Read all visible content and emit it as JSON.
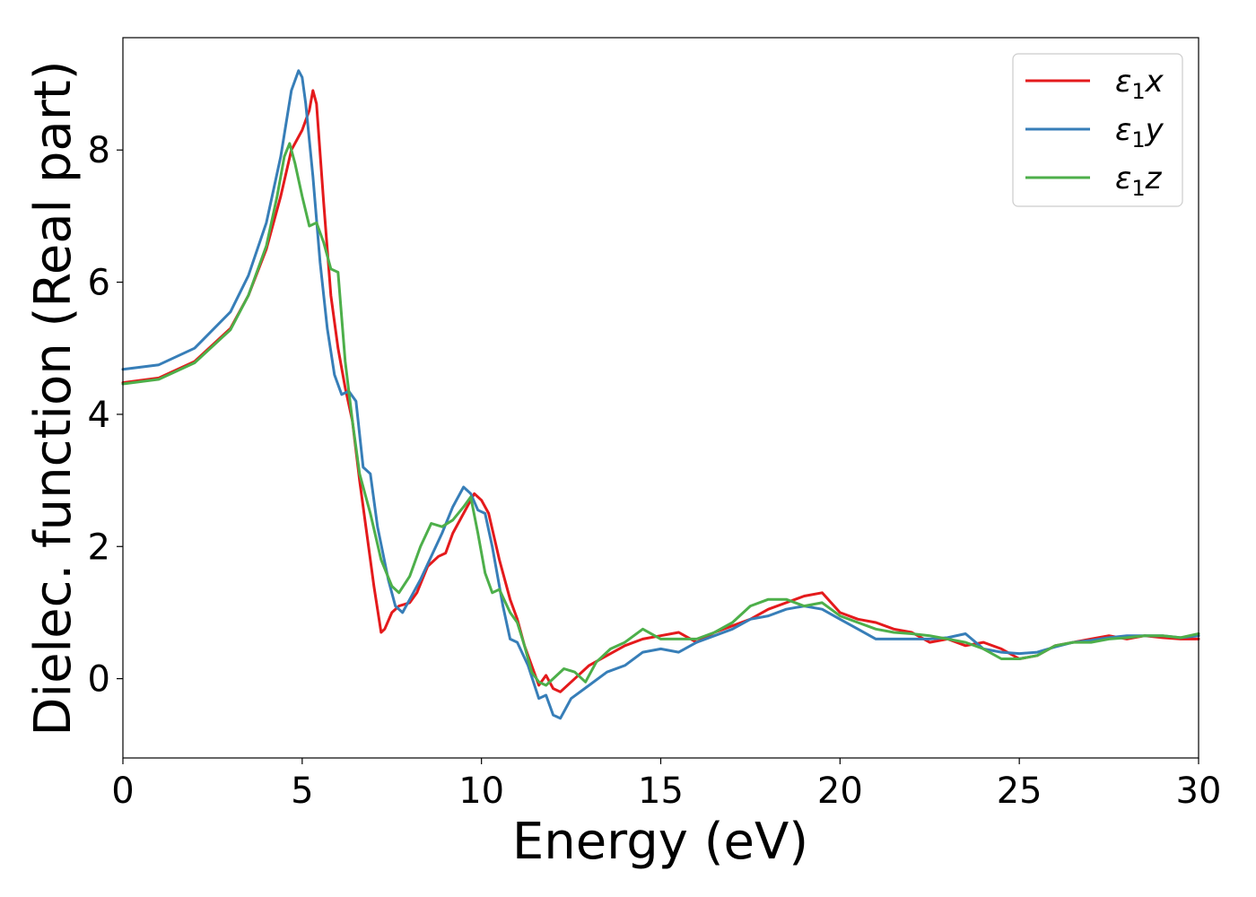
{
  "chart_data": {
    "type": "line",
    "title": "",
    "xlabel": "Energy (eV)",
    "ylabel": "Dielec. function (Real part)",
    "xlim": [
      0,
      30
    ],
    "ylim": [
      -1.2,
      9.7
    ],
    "xticks": [
      0,
      5,
      10,
      15,
      20,
      25,
      30
    ],
    "yticks": [
      0,
      2,
      4,
      6,
      8
    ],
    "grid": false,
    "legend_position": "top-right",
    "series": [
      {
        "name": "ε1x",
        "legend_main": "ε",
        "legend_sub": "1",
        "legend_tail": "x",
        "color": "#e41a1c",
        "points": [
          [
            0,
            4.48
          ],
          [
            1,
            4.55
          ],
          [
            2,
            4.8
          ],
          [
            3,
            5.3
          ],
          [
            3.5,
            5.8
          ],
          [
            4,
            6.5
          ],
          [
            4.4,
            7.3
          ],
          [
            4.7,
            8.0
          ],
          [
            5.0,
            8.3
          ],
          [
            5.2,
            8.6
          ],
          [
            5.3,
            8.9
          ],
          [
            5.4,
            8.7
          ],
          [
            5.6,
            7.2
          ],
          [
            5.8,
            5.8
          ],
          [
            6.0,
            5.0
          ],
          [
            6.2,
            4.4
          ],
          [
            6.4,
            3.9
          ],
          [
            6.6,
            3.0
          ],
          [
            6.8,
            2.2
          ],
          [
            7.0,
            1.4
          ],
          [
            7.2,
            0.7
          ],
          [
            7.3,
            0.75
          ],
          [
            7.5,
            1.0
          ],
          [
            7.7,
            1.1
          ],
          [
            8.0,
            1.15
          ],
          [
            8.2,
            1.3
          ],
          [
            8.5,
            1.7
          ],
          [
            8.8,
            1.85
          ],
          [
            9.0,
            1.9
          ],
          [
            9.2,
            2.2
          ],
          [
            9.5,
            2.5
          ],
          [
            9.8,
            2.8
          ],
          [
            10.0,
            2.7
          ],
          [
            10.2,
            2.5
          ],
          [
            10.5,
            1.8
          ],
          [
            10.8,
            1.2
          ],
          [
            11.0,
            0.9
          ],
          [
            11.2,
            0.5
          ],
          [
            11.5,
            0.05
          ],
          [
            11.6,
            -0.1
          ],
          [
            11.8,
            0.05
          ],
          [
            12.0,
            -0.15
          ],
          [
            12.2,
            -0.2
          ],
          [
            12.5,
            -0.05
          ],
          [
            13.0,
            0.2
          ],
          [
            13.5,
            0.35
          ],
          [
            14.0,
            0.5
          ],
          [
            14.5,
            0.6
          ],
          [
            15.0,
            0.65
          ],
          [
            15.5,
            0.7
          ],
          [
            16.0,
            0.55
          ],
          [
            16.5,
            0.7
          ],
          [
            17.0,
            0.8
          ],
          [
            17.5,
            0.9
          ],
          [
            18.0,
            1.05
          ],
          [
            18.5,
            1.15
          ],
          [
            19.0,
            1.25
          ],
          [
            19.5,
            1.3
          ],
          [
            20.0,
            1.0
          ],
          [
            20.5,
            0.9
          ],
          [
            21.0,
            0.85
          ],
          [
            21.5,
            0.75
          ],
          [
            22.0,
            0.7
          ],
          [
            22.5,
            0.55
          ],
          [
            23.0,
            0.6
          ],
          [
            23.5,
            0.5
          ],
          [
            24.0,
            0.55
          ],
          [
            24.5,
            0.45
          ],
          [
            25.0,
            0.3
          ],
          [
            25.5,
            0.35
          ],
          [
            26.0,
            0.5
          ],
          [
            26.5,
            0.55
          ],
          [
            27.0,
            0.6
          ],
          [
            27.5,
            0.65
          ],
          [
            28.0,
            0.6
          ],
          [
            28.5,
            0.65
          ],
          [
            29.0,
            0.62
          ],
          [
            29.5,
            0.6
          ],
          [
            30.0,
            0.6
          ]
        ]
      },
      {
        "name": "ε1y",
        "legend_main": "ε",
        "legend_sub": "1",
        "legend_tail": "y",
        "color": "#377eb8",
        "points": [
          [
            0,
            4.68
          ],
          [
            1,
            4.75
          ],
          [
            2,
            5.0
          ],
          [
            3,
            5.55
          ],
          [
            3.5,
            6.1
          ],
          [
            4,
            6.9
          ],
          [
            4.4,
            7.9
          ],
          [
            4.7,
            8.9
          ],
          [
            4.9,
            9.2
          ],
          [
            5.0,
            9.1
          ],
          [
            5.1,
            8.7
          ],
          [
            5.3,
            7.6
          ],
          [
            5.5,
            6.3
          ],
          [
            5.7,
            5.3
          ],
          [
            5.9,
            4.6
          ],
          [
            6.1,
            4.3
          ],
          [
            6.3,
            4.35
          ],
          [
            6.5,
            4.2
          ],
          [
            6.7,
            3.2
          ],
          [
            6.9,
            3.1
          ],
          [
            7.1,
            2.3
          ],
          [
            7.4,
            1.5
          ],
          [
            7.6,
            1.1
          ],
          [
            7.8,
            1.0
          ],
          [
            8.0,
            1.2
          ],
          [
            8.3,
            1.5
          ],
          [
            8.6,
            1.85
          ],
          [
            8.9,
            2.2
          ],
          [
            9.2,
            2.6
          ],
          [
            9.5,
            2.9
          ],
          [
            9.7,
            2.8
          ],
          [
            9.9,
            2.55
          ],
          [
            10.1,
            2.5
          ],
          [
            10.3,
            2.0
          ],
          [
            10.6,
            1.1
          ],
          [
            10.8,
            0.6
          ],
          [
            11.0,
            0.55
          ],
          [
            11.3,
            0.2
          ],
          [
            11.6,
            -0.3
          ],
          [
            11.8,
            -0.25
          ],
          [
            12.0,
            -0.55
          ],
          [
            12.2,
            -0.6
          ],
          [
            12.5,
            -0.3
          ],
          [
            13.0,
            -0.1
          ],
          [
            13.5,
            0.1
          ],
          [
            14.0,
            0.2
          ],
          [
            14.5,
            0.4
          ],
          [
            15.0,
            0.45
          ],
          [
            15.5,
            0.4
          ],
          [
            16.0,
            0.55
          ],
          [
            16.5,
            0.65
          ],
          [
            17.0,
            0.75
          ],
          [
            17.5,
            0.9
          ],
          [
            18.0,
            0.95
          ],
          [
            18.5,
            1.05
          ],
          [
            19.0,
            1.1
          ],
          [
            19.5,
            1.05
          ],
          [
            20.0,
            0.9
          ],
          [
            20.5,
            0.75
          ],
          [
            21.0,
            0.6
          ],
          [
            21.5,
            0.6
          ],
          [
            22.0,
            0.6
          ],
          [
            22.5,
            0.6
          ],
          [
            23.0,
            0.62
          ],
          [
            23.5,
            0.68
          ],
          [
            24.0,
            0.45
          ],
          [
            24.5,
            0.4
          ],
          [
            25.0,
            0.38
          ],
          [
            25.5,
            0.4
          ],
          [
            26.0,
            0.48
          ],
          [
            26.5,
            0.55
          ],
          [
            27.0,
            0.58
          ],
          [
            27.5,
            0.62
          ],
          [
            28.0,
            0.65
          ],
          [
            28.5,
            0.65
          ],
          [
            29.0,
            0.65
          ],
          [
            29.5,
            0.62
          ],
          [
            30.0,
            0.65
          ]
        ]
      },
      {
        "name": "ε1z",
        "legend_main": "ε",
        "legend_sub": "1",
        "legend_tail": "z",
        "color": "#4daf4a",
        "points": [
          [
            0,
            4.46
          ],
          [
            1,
            4.53
          ],
          [
            2,
            4.78
          ],
          [
            3,
            5.28
          ],
          [
            3.5,
            5.8
          ],
          [
            4,
            6.55
          ],
          [
            4.3,
            7.3
          ],
          [
            4.5,
            7.9
          ],
          [
            4.65,
            8.1
          ],
          [
            4.8,
            7.8
          ],
          [
            5.0,
            7.3
          ],
          [
            5.2,
            6.85
          ],
          [
            5.4,
            6.9
          ],
          [
            5.6,
            6.6
          ],
          [
            5.8,
            6.2
          ],
          [
            6.0,
            6.15
          ],
          [
            6.2,
            4.8
          ],
          [
            6.4,
            3.9
          ],
          [
            6.6,
            3.1
          ],
          [
            6.9,
            2.5
          ],
          [
            7.2,
            1.8
          ],
          [
            7.5,
            1.4
          ],
          [
            7.7,
            1.3
          ],
          [
            8.0,
            1.55
          ],
          [
            8.3,
            2.0
          ],
          [
            8.6,
            2.35
          ],
          [
            8.9,
            2.3
          ],
          [
            9.2,
            2.4
          ],
          [
            9.5,
            2.6
          ],
          [
            9.7,
            2.75
          ],
          [
            9.9,
            2.2
          ],
          [
            10.1,
            1.6
          ],
          [
            10.3,
            1.3
          ],
          [
            10.5,
            1.35
          ],
          [
            10.8,
            1.0
          ],
          [
            11.0,
            0.85
          ],
          [
            11.2,
            0.5
          ],
          [
            11.4,
            0.1
          ],
          [
            11.6,
            -0.05
          ],
          [
            11.8,
            -0.1
          ],
          [
            12.0,
            0.0
          ],
          [
            12.3,
            0.15
          ],
          [
            12.6,
            0.1
          ],
          [
            12.9,
            -0.05
          ],
          [
            13.2,
            0.25
          ],
          [
            13.6,
            0.45
          ],
          [
            14.0,
            0.55
          ],
          [
            14.5,
            0.75
          ],
          [
            15.0,
            0.6
          ],
          [
            15.5,
            0.6
          ],
          [
            16.0,
            0.6
          ],
          [
            16.5,
            0.7
          ],
          [
            17.0,
            0.85
          ],
          [
            17.5,
            1.1
          ],
          [
            18.0,
            1.2
          ],
          [
            18.5,
            1.2
          ],
          [
            19.0,
            1.1
          ],
          [
            19.5,
            1.15
          ],
          [
            20.0,
            0.95
          ],
          [
            20.5,
            0.85
          ],
          [
            21.0,
            0.75
          ],
          [
            21.5,
            0.7
          ],
          [
            22.0,
            0.68
          ],
          [
            22.5,
            0.65
          ],
          [
            23.0,
            0.6
          ],
          [
            23.5,
            0.55
          ],
          [
            24.0,
            0.45
          ],
          [
            24.5,
            0.3
          ],
          [
            25.0,
            0.3
          ],
          [
            25.5,
            0.35
          ],
          [
            26.0,
            0.5
          ],
          [
            26.5,
            0.55
          ],
          [
            27.0,
            0.55
          ],
          [
            27.5,
            0.6
          ],
          [
            28.0,
            0.62
          ],
          [
            28.5,
            0.65
          ],
          [
            29.0,
            0.65
          ],
          [
            29.5,
            0.62
          ],
          [
            30.0,
            0.68
          ]
        ]
      }
    ]
  }
}
